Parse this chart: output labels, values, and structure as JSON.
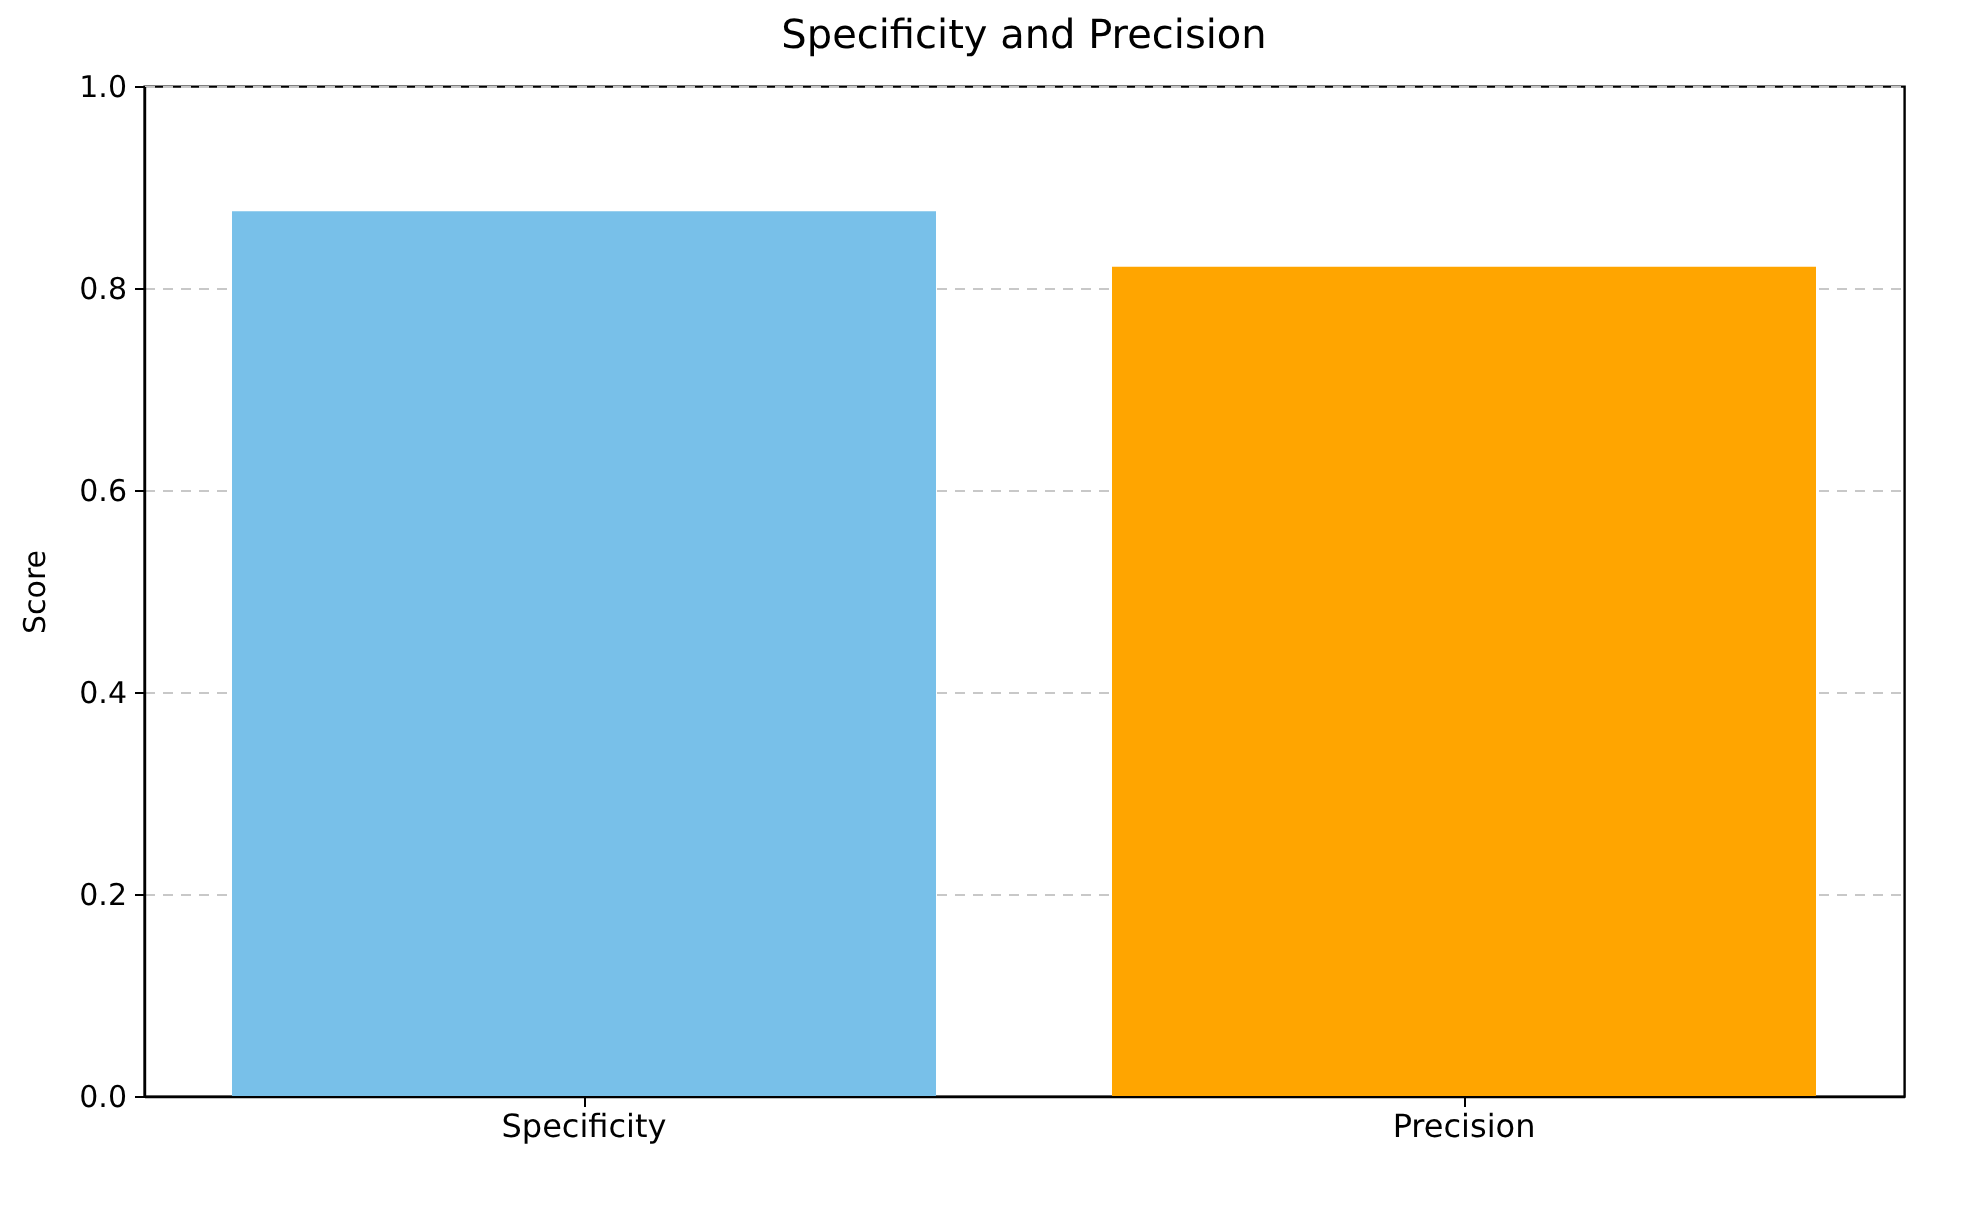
{
  "chart_data": {
    "type": "bar",
    "title": "Specificity and Precision",
    "ylabel": "Score",
    "categories": [
      "Specificity",
      "Precision"
    ],
    "values": [
      0.876,
      0.821
    ],
    "colors": [
      "#78c0e9",
      "#ffa500"
    ],
    "ylim": [
      0,
      1
    ],
    "yticks": [
      {
        "value": 0,
        "label": "0.0"
      },
      {
        "value": 0.2,
        "label": "0.2"
      },
      {
        "value": 0.4,
        "label": "0.4"
      },
      {
        "value": 0.6,
        "label": "0.6"
      },
      {
        "value": 0.8,
        "label": "0.8"
      },
      {
        "value": 1,
        "label": "1.0"
      }
    ],
    "grid": "y"
  }
}
